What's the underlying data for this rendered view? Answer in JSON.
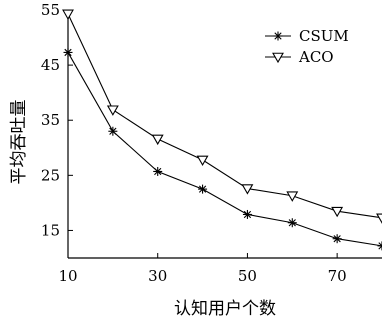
{
  "chart_data": {
    "type": "line",
    "xlabel": "认知用户个数",
    "ylabel": "平均吞吐量",
    "xlim": [
      10,
      80
    ],
    "ylim": [
      10,
      55
    ],
    "x_ticks": [
      10,
      30,
      50,
      70
    ],
    "y_ticks": [
      15,
      25,
      35,
      45,
      55
    ],
    "grid": false,
    "legend_position": "top-right",
    "x": [
      10,
      20,
      30,
      40,
      50,
      60,
      70,
      80
    ],
    "series": [
      {
        "name": "CSUM",
        "marker": "asterisk",
        "values": [
          47.3,
          33.0,
          25.7,
          22.5,
          17.9,
          16.4,
          13.5,
          12.2
        ]
      },
      {
        "name": "ACO",
        "marker": "triangle-down",
        "values": [
          54.3,
          36.9,
          31.6,
          27.8,
          22.6,
          21.3,
          18.5,
          17.3
        ]
      }
    ]
  }
}
